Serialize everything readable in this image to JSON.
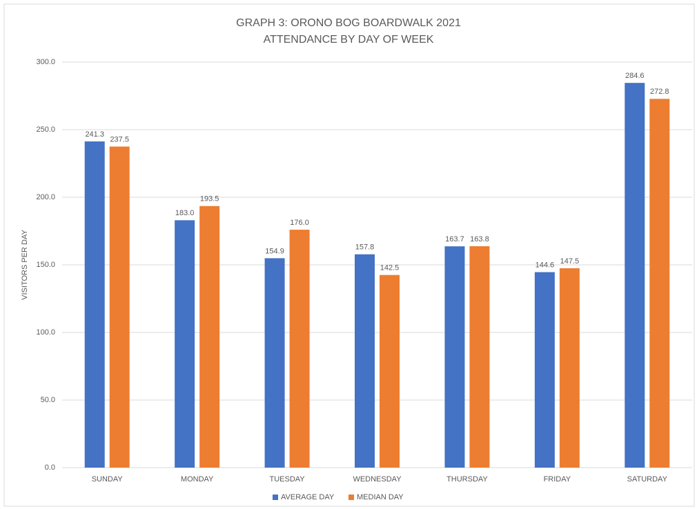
{
  "chart_data": {
    "type": "bar",
    "title": "GRAPH 3: ORONO BOG BOARDWALK 2021",
    "subtitle": "ATTENDANCE BY DAY OF WEEK",
    "y_label": "VISITORS PER DAY",
    "categories": [
      "SUNDAY",
      "MONDAY",
      "TUESDAY",
      "WEDNESDAY",
      "THURSDAY",
      "FRIDAY",
      "SATURDAY"
    ],
    "series": [
      {
        "name": "AVERAGE DAY",
        "color": "#4472c4",
        "values": [
          241.3,
          183,
          154.9,
          157.8,
          163.7,
          144.6,
          284.6
        ],
        "value_labels": [
          "241.3",
          "183.0",
          "154.9",
          "157.8",
          "163.7",
          "144.6",
          "284.6"
        ]
      },
      {
        "name": "MEDIAN DAY",
        "color": "#ed7d31",
        "values": [
          237.5,
          193.5,
          176,
          142.5,
          163.8,
          147.5,
          272.8
        ],
        "value_labels": [
          "237.5",
          "193.5",
          "176.0",
          "142.5",
          "163.8",
          "147.5",
          "272.8"
        ]
      }
    ],
    "ylim": [
      0,
      300
    ],
    "yticks": [
      {
        "value": 0,
        "label": "0.0"
      },
      {
        "value": 50,
        "label": "50.0"
      },
      {
        "value": 100,
        "label": "100.0"
      },
      {
        "value": 150,
        "label": "150.0"
      },
      {
        "value": 200,
        "label": "200.0"
      },
      {
        "value": 250,
        "label": "250.0"
      },
      {
        "value": 300,
        "label": "300.0"
      }
    ],
    "grid": true,
    "legend": "bottom"
  }
}
